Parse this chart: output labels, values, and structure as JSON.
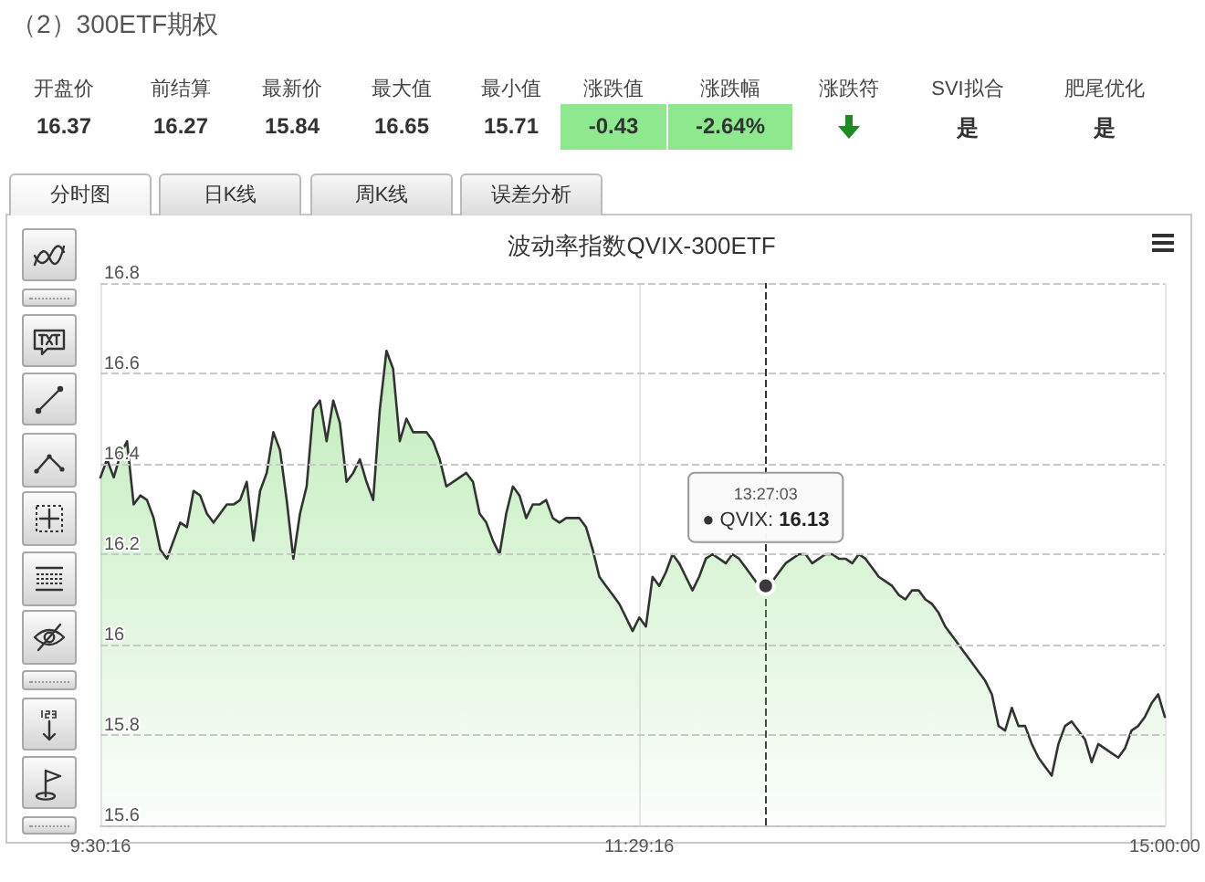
{
  "chart_data": [
    {
      "type": "other",
      "title": "（2）300ETF期权",
      "categories": [
        "开盘价",
        "前结算",
        "最新价",
        "最大值",
        "最小值",
        "涨跌值",
        "涨跌幅",
        "涨跌符",
        "SVI拟合",
        "肥尾优化"
      ],
      "value_labels": [
        "16.37",
        "16.27",
        "15.84",
        "16.65",
        "15.71",
        "-0.43",
        "-2.64%",
        null,
        "是",
        "是"
      ],
      "colors": [
        null,
        null,
        null,
        null,
        null,
        "#8ee88e",
        "#8ee88e",
        null,
        null,
        null
      ],
      "annotations": [
        "分时图",
        "日K线",
        "周K线",
        "误差分析"
      ]
    },
    {
      "type": "area",
      "title": "波动率指数QVIX-300ETF",
      "categories": [
        "9:30:16",
        null,
        null,
        null,
        null,
        null,
        null,
        null,
        null,
        null,
        null,
        null,
        null,
        null,
        null,
        null,
        null,
        null,
        null,
        null,
        null,
        null,
        null,
        null,
        null,
        null,
        null,
        null,
        null,
        null,
        null,
        null,
        null,
        null,
        null,
        null,
        null,
        null,
        null,
        null,
        null,
        null,
        null,
        null,
        null,
        null,
        null,
        null,
        null,
        null,
        null,
        null,
        null,
        null,
        null,
        null,
        null,
        null,
        null,
        null,
        null,
        null,
        null,
        null,
        null,
        null,
        null,
        null,
        null,
        null,
        null,
        null,
        null,
        null,
        null,
        null,
        null,
        null,
        null,
        null,
        null,
        "11:29:16",
        null,
        null,
        null,
        null,
        null,
        null,
        null,
        null,
        null,
        null,
        null,
        null,
        null,
        null,
        null,
        null,
        null,
        null,
        null,
        null,
        null,
        null,
        null,
        null,
        null,
        null,
        null,
        null,
        null,
        null,
        null,
        null,
        null,
        null,
        null,
        null,
        null,
        null,
        null,
        null,
        null,
        null,
        null,
        null,
        null,
        null,
        null,
        null,
        null,
        null,
        null,
        null,
        null,
        null,
        null,
        null,
        null,
        null,
        null,
        null,
        null,
        null,
        null,
        null,
        null,
        null,
        null,
        null,
        null,
        null,
        null,
        null,
        null,
        null,
        null,
        null,
        null,
        null,
        "15:00:00"
      ],
      "values": [
        16.37,
        16.41,
        16.37,
        16.42,
        16.45,
        16.31,
        16.33,
        16.32,
        16.28,
        16.21,
        16.19,
        16.23,
        16.27,
        16.26,
        16.34,
        16.33,
        16.29,
        16.27,
        16.29,
        16.31,
        16.31,
        16.32,
        16.36,
        16.23,
        16.34,
        16.38,
        16.47,
        16.43,
        16.32,
        16.19,
        16.29,
        16.35,
        16.52,
        16.54,
        16.45,
        16.54,
        16.49,
        16.36,
        16.38,
        16.41,
        16.36,
        16.32,
        16.52,
        16.65,
        16.61,
        16.45,
        16.5,
        16.47,
        16.47,
        16.47,
        16.45,
        16.41,
        16.35,
        16.36,
        16.37,
        16.38,
        16.36,
        16.29,
        16.27,
        16.23,
        16.2,
        16.29,
        16.35,
        16.33,
        16.28,
        16.31,
        16.31,
        16.32,
        16.28,
        16.27,
        16.28,
        16.28,
        16.28,
        16.26,
        16.21,
        16.15,
        16.13,
        16.11,
        16.09,
        16.06,
        16.03,
        16.06,
        16.04,
        16.15,
        16.13,
        16.16,
        16.2,
        16.18,
        16.15,
        16.12,
        16.15,
        16.19,
        16.2,
        16.19,
        16.18,
        16.2,
        16.19,
        16.17,
        16.15,
        16.13,
        16.13,
        16.14,
        16.16,
        16.18,
        16.19,
        16.2,
        16.2,
        16.18,
        16.19,
        16.2,
        16.2,
        16.19,
        16.19,
        16.18,
        16.2,
        16.19,
        16.17,
        16.15,
        16.14,
        16.13,
        16.11,
        16.1,
        16.12,
        16.12,
        16.1,
        16.09,
        16.07,
        16.04,
        16.02,
        16.0,
        15.98,
        15.96,
        15.94,
        15.92,
        15.89,
        15.82,
        15.81,
        15.86,
        15.82,
        15.82,
        15.78,
        15.75,
        15.73,
        15.71,
        15.78,
        15.82,
        15.83,
        15.81,
        15.79,
        15.74,
        15.78,
        15.77,
        15.76,
        15.75,
        15.77,
        15.81,
        15.82,
        15.84,
        15.87,
        15.89,
        15.84
      ],
      "value_labels": [
        null,
        null,
        null,
        null,
        null,
        null,
        null,
        null,
        null,
        null,
        null,
        null,
        null,
        null,
        null,
        null,
        null,
        null,
        null,
        null,
        null,
        null,
        null,
        null,
        null,
        null,
        null,
        null,
        null,
        null,
        null,
        null,
        null,
        null,
        null,
        null,
        null,
        null,
        null,
        null,
        null,
        null,
        null,
        null,
        null,
        null,
        null,
        null,
        null,
        null,
        null,
        null,
        null,
        null,
        null,
        null,
        null,
        null,
        null,
        null,
        null,
        null,
        null,
        null,
        null,
        null,
        null,
        null,
        null,
        null,
        null,
        null,
        null,
        null,
        null,
        null,
        null,
        null,
        null,
        null,
        null,
        null,
        null,
        null,
        null,
        null,
        null,
        null,
        null,
        null,
        null,
        null,
        null,
        null,
        null,
        null,
        null,
        null,
        null,
        null,
        "13:27:03\n● QVIX: 16.13",
        null,
        null,
        null,
        null,
        null,
        null,
        null,
        null,
        null,
        null,
        null,
        null,
        null,
        null,
        null,
        null,
        null,
        null,
        null,
        null,
        null,
        null,
        null,
        null,
        null,
        null,
        null,
        null,
        null,
        null,
        null,
        null,
        null,
        null,
        null,
        null,
        null,
        null,
        null,
        null,
        null,
        null,
        null,
        null,
        null,
        null,
        null,
        null,
        null,
        null,
        null,
        null,
        null,
        null,
        null,
        null,
        null,
        null,
        null,
        null
      ],
      "color": "#96e08c",
      "ylim": [
        15.6,
        16.8
      ],
      "yticks": [
        15.6,
        15.8,
        16,
        16.2,
        16.4,
        16.6,
        16.8
      ],
      "grid": true
    }
  ]
}
